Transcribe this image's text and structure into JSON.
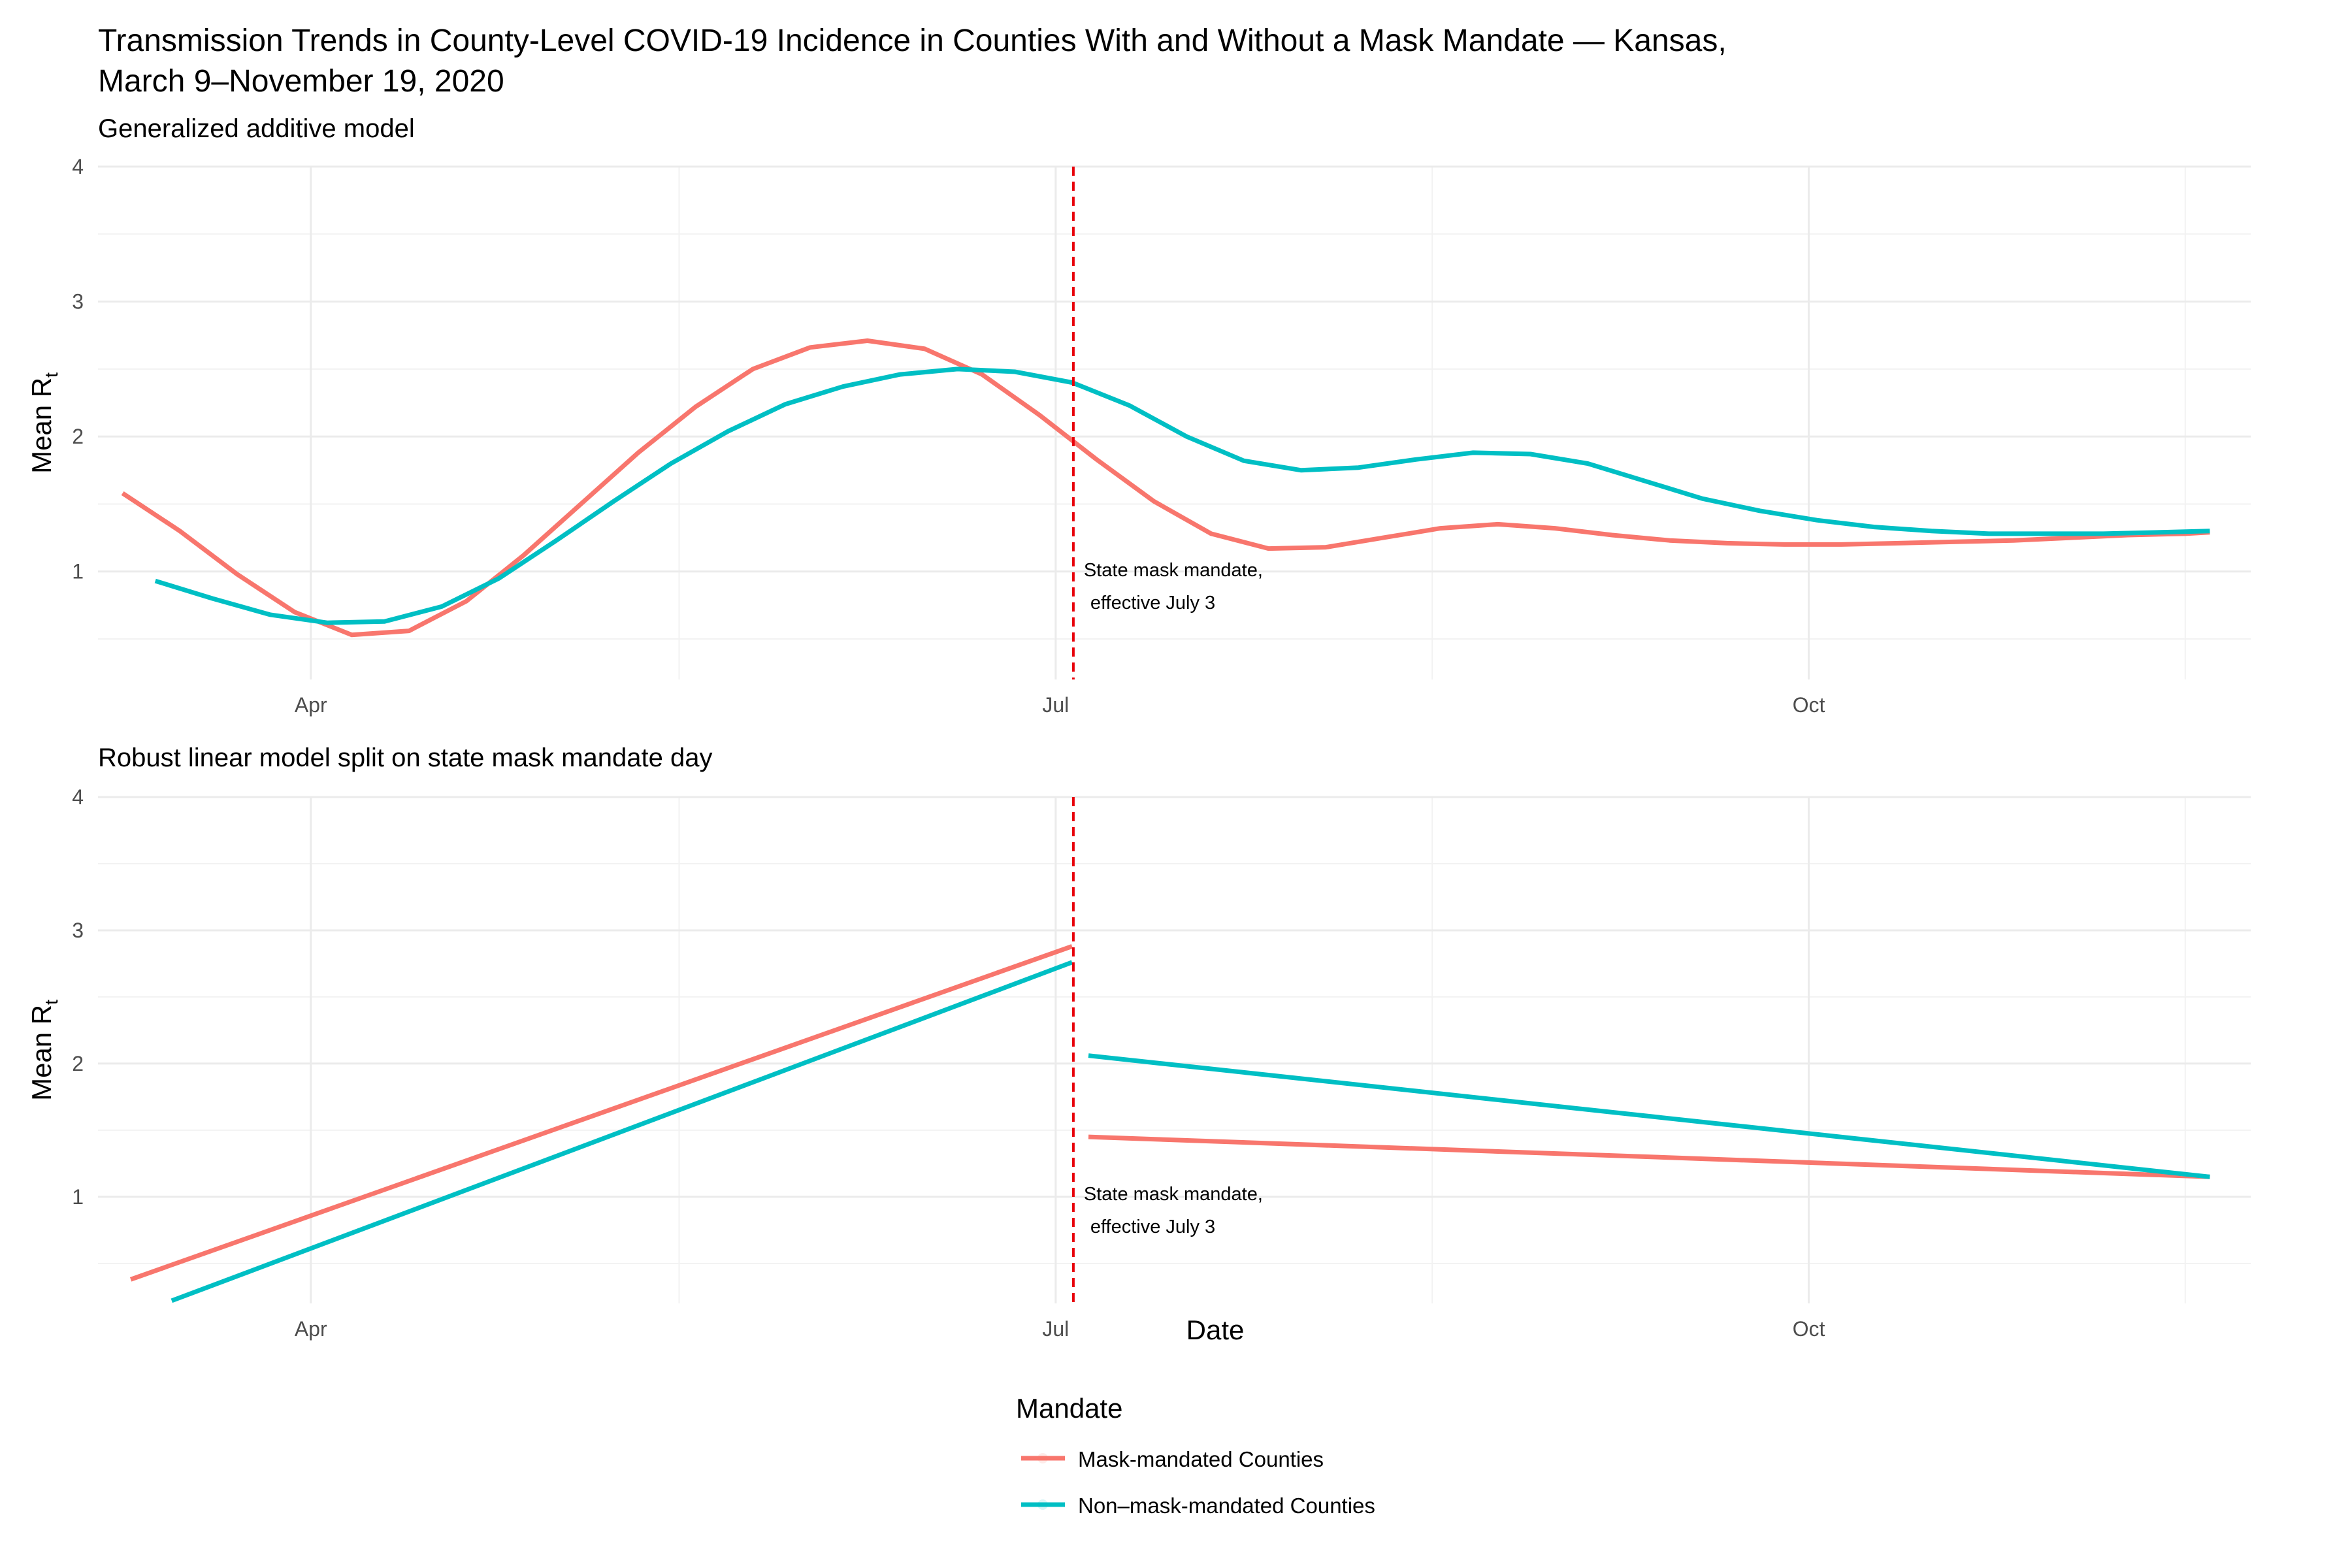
{
  "figure": {
    "title_line1": "Transmission Trends in County-Level COVID-19 Incidence in Counties With and Without a Mask Mandate — Kansas,",
    "title_line2": "March 9–November 19, 2020",
    "xlabel": "Date",
    "ylabel_main": "Mean R",
    "ylabel_sub": "t",
    "legend_title": "Mandate",
    "legend": [
      {
        "name": "Mask-mandated Counties",
        "color": "#F8766D"
      },
      {
        "name": "Non–mask-mandated Counties",
        "color": "#00BFC4"
      }
    ],
    "colors": {
      "mask": "#F8766D",
      "nonmask": "#00BFC4",
      "mandate_line": "#E8000B",
      "grid": "#EBEBEB"
    },
    "mandate": {
      "date": "2020-07-03",
      "label_line1": "State mask mandate,",
      "label_line2": "effective July 3"
    }
  },
  "chart_data": [
    {
      "type": "line",
      "title": "Generalized additive model",
      "xlabel": "",
      "ylabel": "Mean Rt",
      "x_axis": "date",
      "xlim": [
        "2020-03-06",
        "2020-11-24"
      ],
      "ylim": [
        0.2,
        4.0
      ],
      "x_ticks": [
        {
          "date": "2020-04-01",
          "label": "Apr"
        },
        {
          "date": "2020-07-01",
          "label": "Jul"
        },
        {
          "date": "2020-10-01",
          "label": "Oct"
        }
      ],
      "y_ticks": [
        1,
        2,
        3,
        4
      ],
      "grid": true,
      "series": [
        {
          "name": "Mask-mandated Counties",
          "x": [
            "2020-03-09",
            "2020-03-16",
            "2020-03-23",
            "2020-03-30",
            "2020-04-06",
            "2020-04-13",
            "2020-04-20",
            "2020-04-27",
            "2020-05-04",
            "2020-05-11",
            "2020-05-18",
            "2020-05-25",
            "2020-06-01",
            "2020-06-08",
            "2020-06-15",
            "2020-06-22",
            "2020-06-29",
            "2020-07-06",
            "2020-07-13",
            "2020-07-20",
            "2020-07-27",
            "2020-08-03",
            "2020-08-10",
            "2020-08-17",
            "2020-08-24",
            "2020-08-31",
            "2020-09-07",
            "2020-09-14",
            "2020-09-21",
            "2020-09-28",
            "2020-10-05",
            "2020-10-12",
            "2020-10-19",
            "2020-10-26",
            "2020-11-02",
            "2020-11-09",
            "2020-11-16",
            "2020-11-19"
          ],
          "y": [
            1.58,
            1.3,
            0.98,
            0.7,
            0.53,
            0.56,
            0.78,
            1.12,
            1.5,
            1.88,
            2.22,
            2.5,
            2.66,
            2.71,
            2.65,
            2.46,
            2.16,
            1.83,
            1.52,
            1.28,
            1.17,
            1.18,
            1.25,
            1.32,
            1.35,
            1.32,
            1.27,
            1.23,
            1.21,
            1.2,
            1.2,
            1.21,
            1.22,
            1.23,
            1.25,
            1.27,
            1.28,
            1.29
          ]
        },
        {
          "name": "Non–mask-mandated Counties",
          "x": [
            "2020-03-13",
            "2020-03-20",
            "2020-03-27",
            "2020-04-03",
            "2020-04-10",
            "2020-04-17",
            "2020-04-24",
            "2020-05-01",
            "2020-05-08",
            "2020-05-15",
            "2020-05-22",
            "2020-05-29",
            "2020-06-05",
            "2020-06-12",
            "2020-06-19",
            "2020-06-26",
            "2020-07-03",
            "2020-07-10",
            "2020-07-17",
            "2020-07-24",
            "2020-07-31",
            "2020-08-07",
            "2020-08-14",
            "2020-08-21",
            "2020-08-28",
            "2020-09-04",
            "2020-09-11",
            "2020-09-18",
            "2020-09-25",
            "2020-10-02",
            "2020-10-09",
            "2020-10-16",
            "2020-10-23",
            "2020-10-30",
            "2020-11-06",
            "2020-11-13",
            "2020-11-19"
          ],
          "y": [
            0.93,
            0.8,
            0.68,
            0.62,
            0.63,
            0.74,
            0.95,
            1.23,
            1.52,
            1.8,
            2.04,
            2.24,
            2.37,
            2.46,
            2.5,
            2.48,
            2.4,
            2.23,
            2.0,
            1.82,
            1.75,
            1.77,
            1.83,
            1.88,
            1.87,
            1.8,
            1.67,
            1.54,
            1.45,
            1.38,
            1.33,
            1.3,
            1.28,
            1.28,
            1.28,
            1.29,
            1.3
          ]
        }
      ]
    },
    {
      "type": "line",
      "title": "Robust linear model split on state mask mandate day",
      "xlabel": "Date",
      "ylabel": "Mean Rt",
      "x_axis": "date",
      "xlim": [
        "2020-03-06",
        "2020-11-24"
      ],
      "ylim": [
        0.2,
        4.0
      ],
      "x_ticks": [
        {
          "date": "2020-04-01",
          "label": "Apr"
        },
        {
          "date": "2020-07-01",
          "label": "Jul"
        },
        {
          "date": "2020-10-01",
          "label": "Oct"
        }
      ],
      "y_ticks": [
        1,
        2,
        3,
        4
      ],
      "grid": true,
      "series": [
        {
          "name": "Mask-mandated Counties",
          "segments": [
            {
              "x": [
                "2020-03-10",
                "2020-07-03"
              ],
              "y": [
                0.38,
                2.88
              ]
            },
            {
              "x": [
                "2020-07-05",
                "2020-11-19"
              ],
              "y": [
                1.45,
                1.15
              ]
            }
          ]
        },
        {
          "name": "Non–mask-mandated Counties",
          "segments": [
            {
              "x": [
                "2020-03-15",
                "2020-07-03"
              ],
              "y": [
                0.22,
                2.76
              ]
            },
            {
              "x": [
                "2020-07-05",
                "2020-11-19"
              ],
              "y": [
                2.06,
                1.15
              ]
            }
          ]
        }
      ]
    }
  ]
}
